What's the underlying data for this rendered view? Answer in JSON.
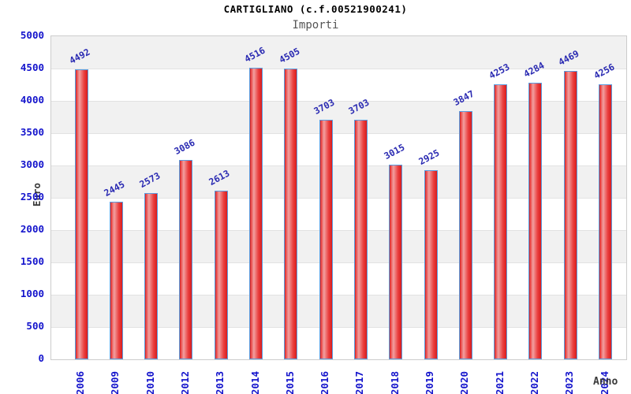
{
  "chart": {
    "title": "CARTIGLIANO (c.f.00521900241)",
    "subtitle": "Importi",
    "ylabel": "Euro",
    "xlabel": "Anno"
  },
  "chart_data": {
    "type": "bar",
    "title": "CARTIGLIANO (c.f.00521900241)",
    "subtitle": "Importi",
    "xlabel": "Anno",
    "ylabel": "Euro",
    "categories": [
      "2006",
      "2009",
      "2010",
      "2012",
      "2013",
      "2014",
      "2015",
      "2016",
      "2017",
      "2018",
      "2019",
      "2020",
      "2021",
      "2022",
      "2023",
      "2024"
    ],
    "values": [
      4492,
      2445,
      2573,
      3086,
      2613,
      4516,
      4505,
      3703,
      3703,
      3015,
      2925,
      3847,
      4253,
      4284,
      4469,
      4256
    ],
    "ylim": [
      0,
      5000
    ],
    "ytick_step": 500,
    "yticks": [
      0,
      500,
      1000,
      1500,
      2000,
      2500,
      3000,
      3500,
      4000,
      4500,
      5000
    ],
    "grid": "alternating-horizontal-bands",
    "legend_position": "none",
    "colors": {
      "bar_fill_dark": "#d91c1c",
      "bar_fill_light": "#f2a0a0",
      "bar_border": "#5a9de0",
      "tick_text": "#1414cc",
      "value_text": "#2a2ab2",
      "band_gray": "#f1f1f1",
      "band_white": "#ffffff",
      "plot_border": "#cccccc",
      "title_text": "#000000",
      "subtitle_text": "#555555",
      "axis_title_text": "#3a3a3a"
    }
  }
}
